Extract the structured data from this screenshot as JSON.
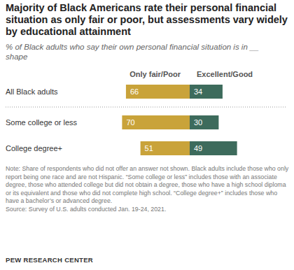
{
  "chart_data": {
    "type": "bar",
    "orientation": "horizontal",
    "stacked": true,
    "data_labels": true,
    "tick_labels": false,
    "grid": false,
    "title": "Majority of Black Americans rate their personal financial situation as only fair or poor, but assessments vary widely by educational attainment",
    "subtitle": "% of Black adults who say their own personal financial situation is in __ shape",
    "categories": [
      "All Black adults",
      "Some college or less",
      "College degree+"
    ],
    "xlim": [
      -100,
      100
    ],
    "series": [
      {
        "name": "Only fair/Poor",
        "color": "#c9a33a",
        "values": [
          66,
          70,
          51
        ]
      },
      {
        "name": "Excellent/Good",
        "color": "#3d6b5c",
        "values": [
          34,
          30,
          49
        ]
      }
    ],
    "note": "Note: Share of respondents who did not offer an answer not shown. Black adults include those who only report being one race and are not Hispanic. “Some college or less” includes those with an associate degree, those who attended college but did not obtain a degree, those who have a high school diploma or its equivalent and those who did not complete high school. “College degree+” includes those who have a bachelor’s or advanced degree.",
    "source": "Source: Survey of U.S. adults conducted Jan. 19-24, 2021.",
    "credit": "PEW RESEARCH CENTER"
  }
}
